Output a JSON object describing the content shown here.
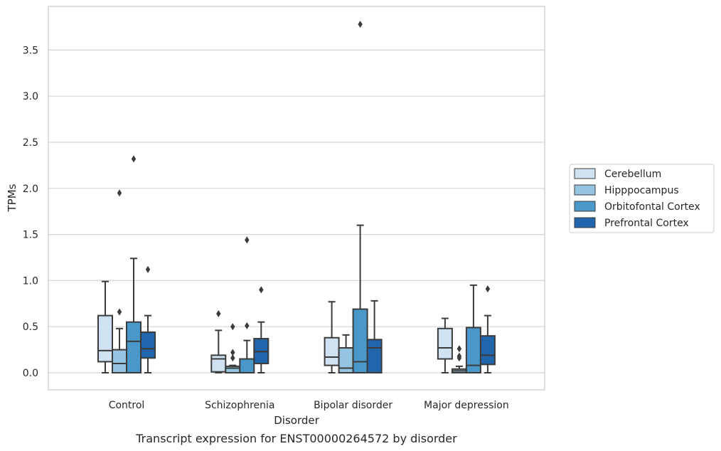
{
  "caption": "Transcript expression for ENST00000264572 by disorder",
  "chart_data": {
    "type": "box",
    "xlabel": "Disorder",
    "ylabel": "TPMs",
    "ylim": [
      -0.18,
      3.97
    ],
    "yticks": [
      "0.0",
      "0.5",
      "1.0",
      "1.5",
      "2.0",
      "2.5",
      "3.0",
      "3.5"
    ],
    "grid": true,
    "legend_position": "right",
    "categories": [
      "Control",
      "Schizophrenia",
      "Bipolar disorder",
      "Major depression"
    ],
    "series": [
      {
        "name": "Cerebellum",
        "color": "#d0e1f2",
        "boxes": [
          {
            "whislo": 0.0,
            "q1": 0.12,
            "med": 0.24,
            "q3": 0.62,
            "whishi": 0.99,
            "fliers": []
          },
          {
            "whislo": 0.0,
            "q1": 0.01,
            "med": 0.15,
            "q3": 0.19,
            "whishi": 0.46,
            "fliers": [
              0.64
            ]
          },
          {
            "whislo": 0.0,
            "q1": 0.08,
            "med": 0.17,
            "q3": 0.38,
            "whishi": 0.77,
            "fliers": []
          },
          {
            "whislo": 0.0,
            "q1": 0.15,
            "med": 0.27,
            "q3": 0.48,
            "whishi": 0.59,
            "fliers": []
          }
        ]
      },
      {
        "name": "Hipppocampus",
        "color": "#94c4df",
        "boxes": [
          {
            "whislo": 0.0,
            "q1": 0.0,
            "med": 0.1,
            "q3": 0.25,
            "whishi": 0.48,
            "fliers": [
              0.66,
              1.95
            ]
          },
          {
            "whislo": 0.0,
            "q1": 0.0,
            "med": 0.05,
            "q3": 0.07,
            "whishi": 0.08,
            "fliers": [
              0.16,
              0.22,
              0.5
            ]
          },
          {
            "whislo": 0.0,
            "q1": 0.0,
            "med": 0.05,
            "q3": 0.27,
            "whishi": 0.41,
            "fliers": []
          },
          {
            "whislo": 0.0,
            "q1": 0.0,
            "med": 0.02,
            "q3": 0.04,
            "whishi": 0.07,
            "fliers": [
              0.16,
              0.18,
              0.26
            ]
          }
        ]
      },
      {
        "name": "Orbitofontal Cortex",
        "color": "#4a98c9",
        "boxes": [
          {
            "whislo": 0.0,
            "q1": 0.0,
            "med": 0.34,
            "q3": 0.55,
            "whishi": 1.24,
            "fliers": [
              2.32
            ]
          },
          {
            "whislo": 0.0,
            "q1": 0.0,
            "med": 0.0,
            "q3": 0.15,
            "whishi": 0.35,
            "fliers": [
              0.51,
              1.44
            ]
          },
          {
            "whislo": 0.0,
            "q1": 0.0,
            "med": 0.12,
            "q3": 0.69,
            "whishi": 1.6,
            "fliers": [
              3.78
            ]
          },
          {
            "whislo": 0.0,
            "q1": 0.0,
            "med": 0.08,
            "q3": 0.49,
            "whishi": 0.95,
            "fliers": []
          }
        ]
      },
      {
        "name": "Prefrontal Cortex",
        "color": "#2166ac",
        "boxes": [
          {
            "whislo": 0.0,
            "q1": 0.16,
            "med": 0.26,
            "q3": 0.44,
            "whishi": 0.62,
            "fliers": [
              1.12
            ]
          },
          {
            "whislo": 0.0,
            "q1": 0.1,
            "med": 0.23,
            "q3": 0.37,
            "whishi": 0.55,
            "fliers": [
              0.9
            ]
          },
          {
            "whislo": 0.0,
            "q1": 0.0,
            "med": 0.27,
            "q3": 0.36,
            "whishi": 0.78,
            "fliers": []
          },
          {
            "whislo": 0.0,
            "q1": 0.09,
            "med": 0.19,
            "q3": 0.4,
            "whishi": 0.62,
            "fliers": [
              0.91
            ]
          }
        ]
      }
    ]
  }
}
